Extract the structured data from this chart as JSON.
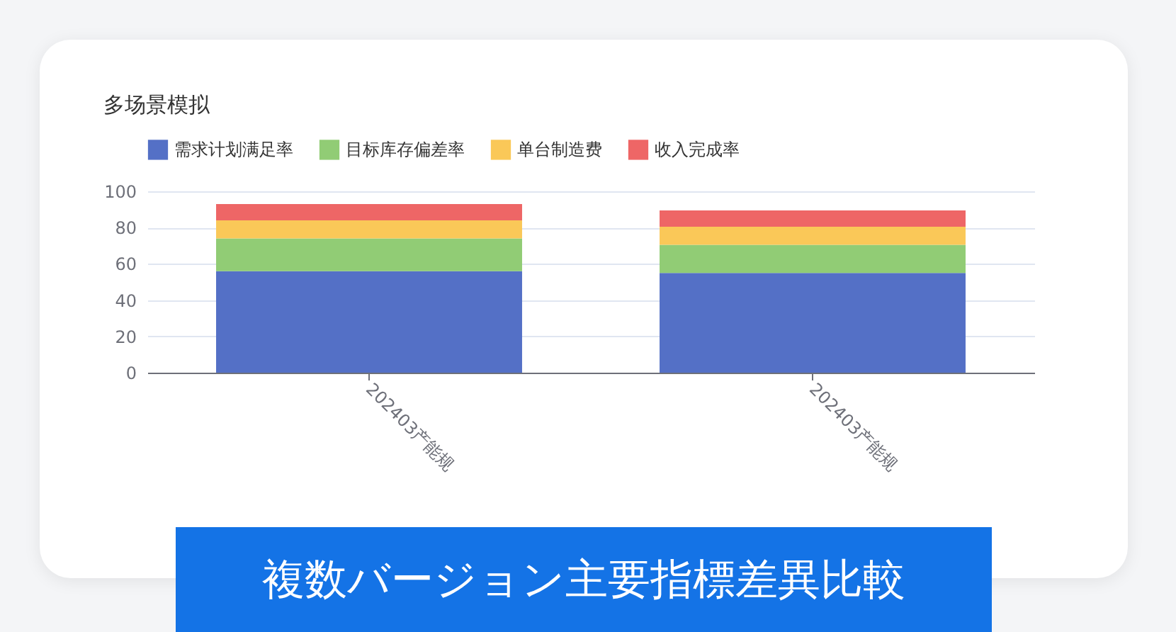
{
  "chart_data": {
    "type": "bar",
    "title": "多场景模拟",
    "stacked": true,
    "categories": [
      "202403产能规",
      "202403产能规"
    ],
    "series": [
      {
        "name": "需求计划满足率",
        "color": "#5470c6",
        "values": [
          56,
          55
        ]
      },
      {
        "name": "目标库存偏差率",
        "color": "#91cc75",
        "values": [
          18,
          15.5
        ]
      },
      {
        "name": "单台制造费",
        "color": "#fac858",
        "values": [
          10,
          10
        ]
      },
      {
        "name": "收入完成率",
        "color": "#ee6666",
        "values": [
          9,
          9
        ]
      }
    ],
    "ylim": [
      0,
      100
    ],
    "yticks": [
      0,
      20,
      40,
      60,
      80,
      100
    ],
    "grid": "y",
    "legend": "top",
    "annotations": [
      "複数バージョン主要指標差異比較"
    ]
  }
}
